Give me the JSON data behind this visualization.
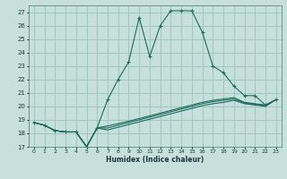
{
  "title": "",
  "xlabel": "Humidex (Indice chaleur)",
  "ylabel": "",
  "bg_color": "#c8e0dc",
  "line_color": "#1a6e5e",
  "grid_color": "#a0c8c0",
  "xlim": [
    -0.5,
    23.5
  ],
  "ylim": [
    17,
    27.5
  ],
  "xticks": [
    0,
    1,
    2,
    3,
    4,
    5,
    6,
    7,
    8,
    9,
    10,
    11,
    12,
    13,
    14,
    15,
    16,
    17,
    18,
    19,
    20,
    21,
    22,
    23
  ],
  "yticks": [
    17,
    18,
    19,
    20,
    21,
    22,
    23,
    24,
    25,
    26,
    27
  ],
  "series": [
    [
      18.8,
      18.6,
      18.2,
      18.1,
      18.1,
      17.0,
      18.4,
      20.5,
      22.0,
      23.3,
      26.6,
      23.7,
      26.0,
      27.1,
      27.1,
      27.1,
      25.5,
      23.0,
      22.5,
      21.5,
      20.8,
      20.8,
      20.1,
      20.5
    ],
    [
      18.8,
      18.6,
      18.2,
      18.1,
      18.1,
      17.0,
      18.4,
      18.55,
      18.72,
      18.9,
      19.1,
      19.3,
      19.5,
      19.7,
      19.9,
      20.1,
      20.3,
      20.45,
      20.55,
      20.65,
      20.3,
      20.2,
      20.1,
      20.5
    ],
    [
      18.8,
      18.6,
      18.2,
      18.1,
      18.1,
      17.0,
      18.4,
      18.4,
      18.6,
      18.8,
      19.0,
      19.2,
      19.4,
      19.6,
      19.8,
      20.0,
      20.2,
      20.35,
      20.45,
      20.55,
      20.25,
      20.15,
      20.05,
      20.5
    ],
    [
      18.8,
      18.6,
      18.2,
      18.1,
      18.1,
      17.0,
      18.4,
      18.25,
      18.45,
      18.65,
      18.85,
      19.05,
      19.25,
      19.45,
      19.65,
      19.85,
      20.05,
      20.2,
      20.3,
      20.45,
      20.2,
      20.1,
      20.0,
      20.5
    ]
  ]
}
